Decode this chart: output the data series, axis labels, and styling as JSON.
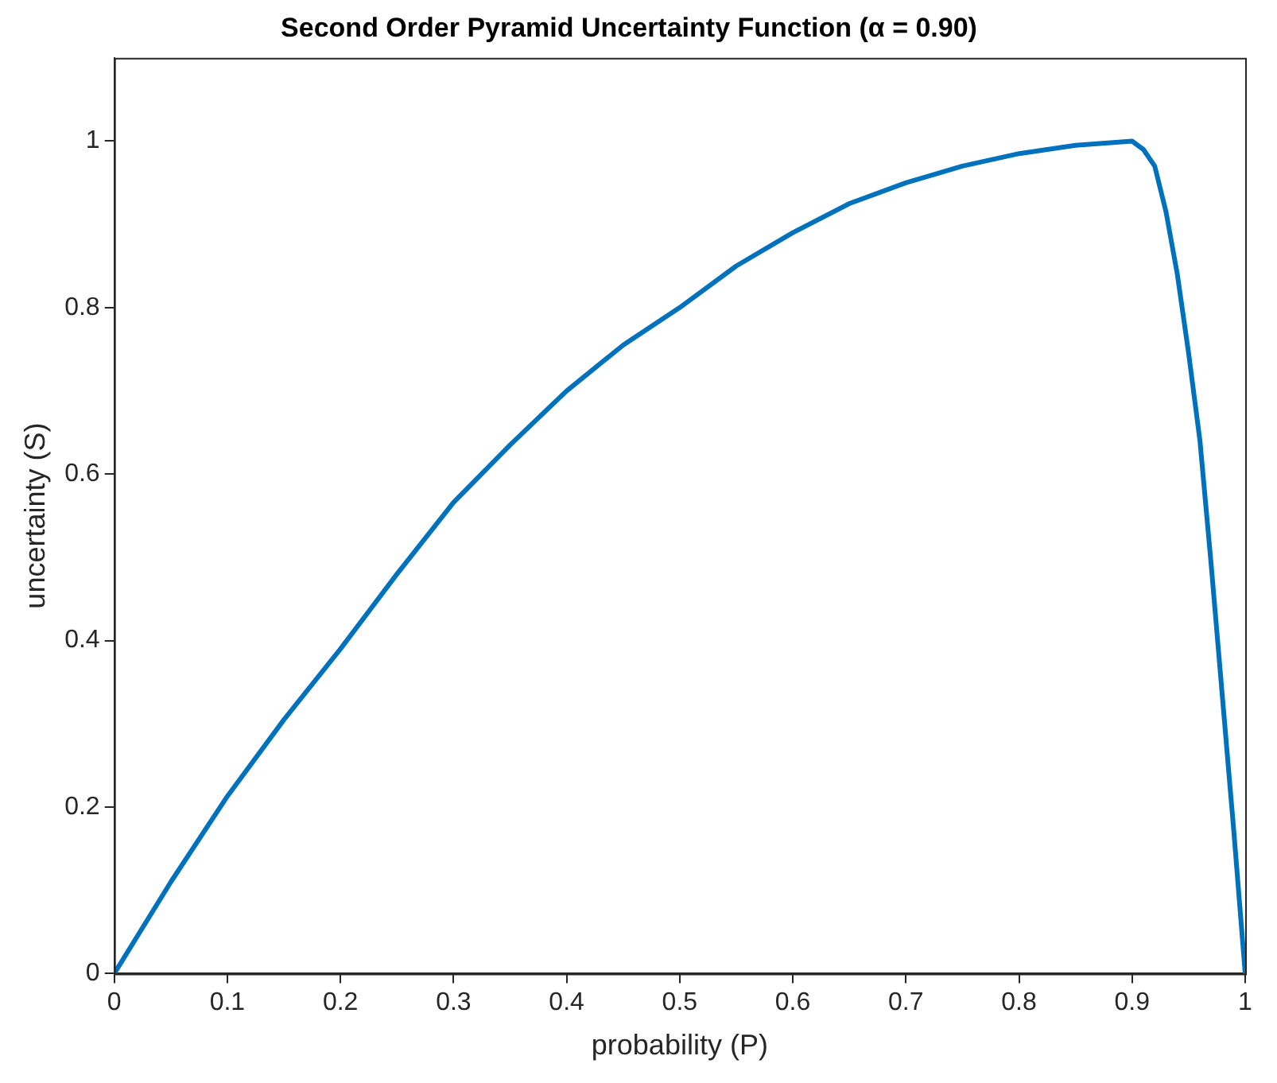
{
  "chart_data": {
    "type": "line",
    "title": "Second Order Pyramid Uncertainty Function (α = 0.90)",
    "xlabel": "probability (P)",
    "ylabel": "uncertainty (S)",
    "xlim": [
      0,
      1
    ],
    "xticks": [
      0,
      0.1,
      0.2,
      0.3,
      0.4,
      0.5,
      0.6,
      0.7,
      0.8,
      0.9,
      1
    ],
    "ylim": [
      0,
      1.1
    ],
    "yticks": [
      0,
      0.2,
      0.4,
      0.6,
      0.8,
      1
    ],
    "grid": false,
    "legend": false,
    "marker": "none",
    "line_style": "solid",
    "series": [
      {
        "color": "#0072bd",
        "x": [
          0,
          0.05,
          0.1,
          0.15,
          0.2,
          0.25,
          0.3,
          0.35,
          0.4,
          0.45,
          0.5,
          0.55,
          0.6,
          0.65,
          0.7,
          0.75,
          0.8,
          0.85,
          0.9,
          0.91,
          0.92,
          0.93,
          0.94,
          0.95,
          0.96,
          0.97,
          0.98,
          0.99,
          1
        ],
        "values": [
          0,
          0.11,
          0.213,
          0.305,
          0.39,
          0.48,
          0.566,
          0.635,
          0.7,
          0.755,
          0.8,
          0.85,
          0.89,
          0.925,
          0.95,
          0.97,
          0.985,
          0.995,
          1.0,
          0.99,
          0.97,
          0.915,
          0.84,
          0.745,
          0.64,
          0.49,
          0.33,
          0.17,
          0
        ]
      }
    ]
  }
}
